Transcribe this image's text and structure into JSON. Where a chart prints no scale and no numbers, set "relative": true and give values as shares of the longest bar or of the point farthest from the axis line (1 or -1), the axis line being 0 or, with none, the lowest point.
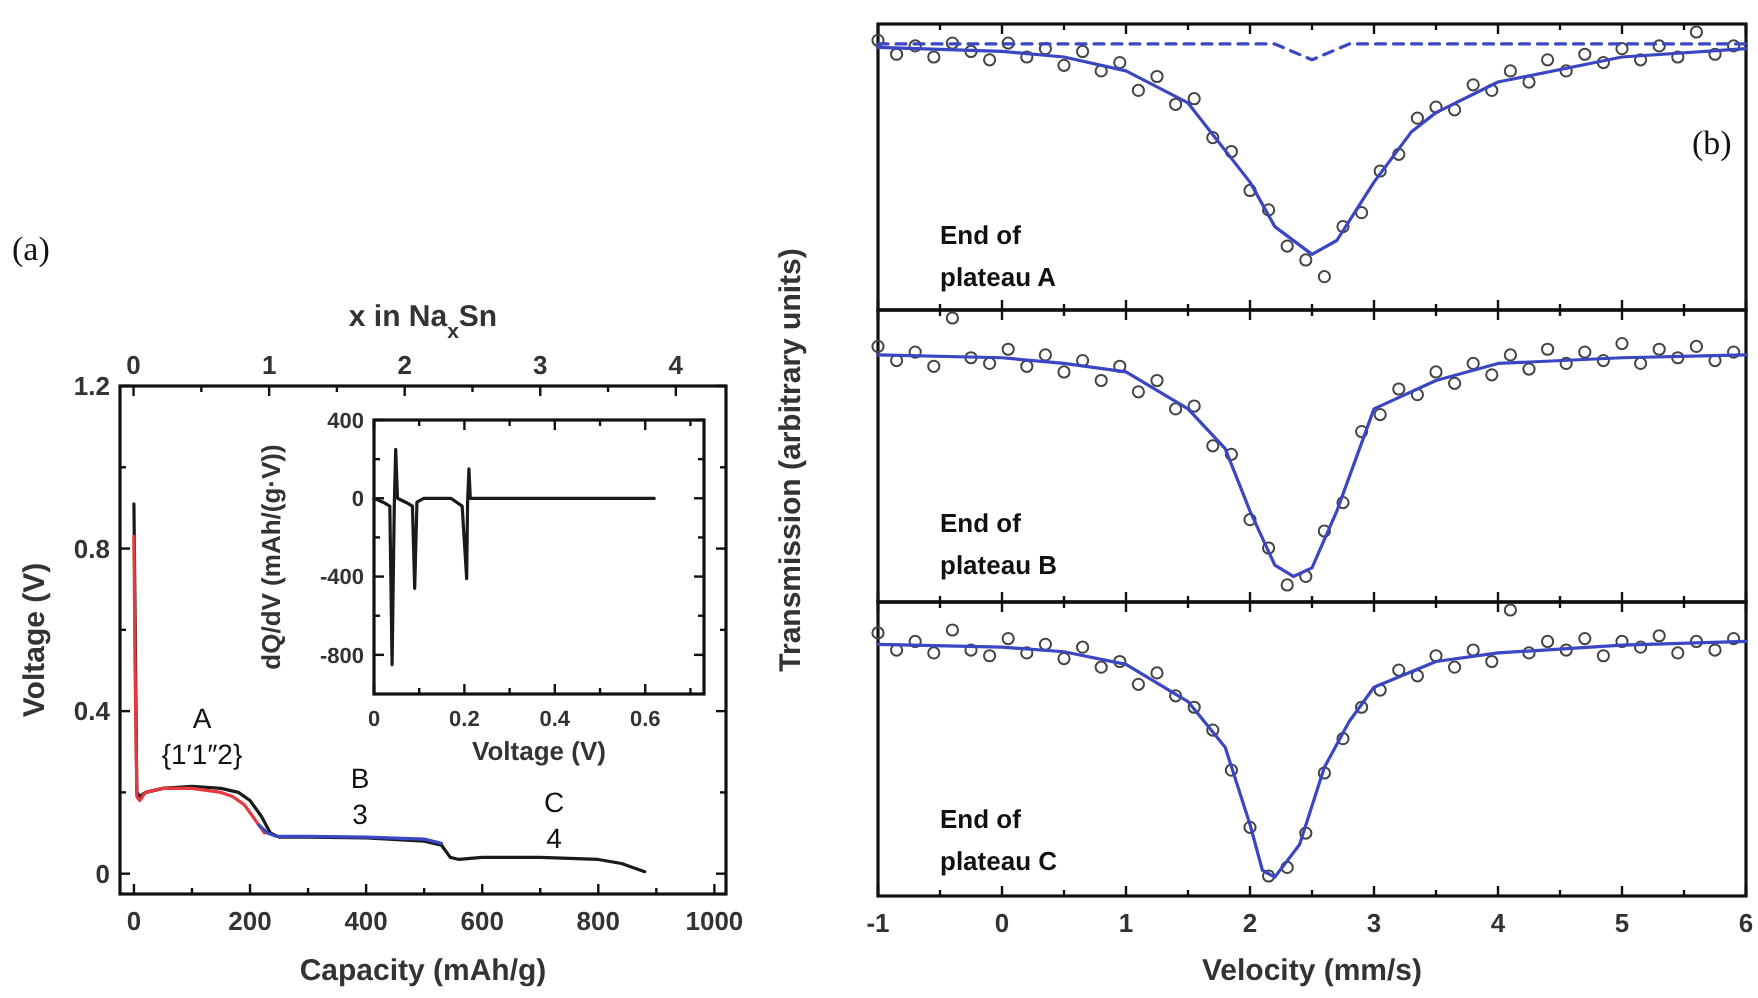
{
  "chart_data": [
    {
      "type": "line",
      "xlabel": "Capacity (mAh/g)",
      "ylabel": "Voltage (V)",
      "x2label": "x in Na$_{x}$Sn",
      "xlim": [
        -24,
        1020
      ],
      "xticks": [
        0,
        {
          "value": 100,
          "label": null
        },
        200,
        {
          "value": 300,
          "label": null
        },
        400,
        {
          "value": 500,
          "label": null
        },
        600,
        {
          "value": 700,
          "label": null
        },
        800,
        {
          "value": 900,
          "label": null
        },
        1000
      ],
      "x2lim": [
        -0.1,
        4.37
      ],
      "x2ticks": [
        0,
        {
          "value": 0.5,
          "label": null
        },
        1,
        {
          "value": 1.5,
          "label": null
        },
        2,
        {
          "value": 2.5,
          "label": null
        },
        3,
        {
          "value": 3.5,
          "label": null
        },
        4
      ],
      "ylim": [
        -0.05,
        1.2
      ],
      "yticks": [
        0,
        {
          "value": 0.2,
          "label": null
        },
        0.4,
        {
          "value": 0.6,
          "label": null
        },
        0.8,
        {
          "value": 1.0,
          "label": null
        },
        1.2
      ],
      "series": [
        {
          "color": "#1a1a1a",
          "x": [
            0,
            5,
            10,
            20,
            50,
            100,
            150,
            180,
            200,
            220,
            235,
            250,
            300,
            400,
            500,
            530,
            545,
            560,
            600,
            700,
            800,
            840,
            880
          ],
          "values": [
            0.91,
            0.2,
            0.19,
            0.2,
            0.21,
            0.215,
            0.21,
            0.2,
            0.18,
            0.14,
            0.1,
            0.09,
            0.09,
            0.088,
            0.08,
            0.07,
            0.04,
            0.035,
            0.04,
            0.04,
            0.035,
            0.025,
            0.005
          ]
        },
        {
          "color": "#e8383d",
          "x": [
            0,
            2,
            5,
            10,
            20,
            50,
            100,
            150,
            170,
            190,
            210,
            225
          ],
          "values": [
            0.83,
            0.5,
            0.19,
            0.18,
            0.2,
            0.21,
            0.21,
            0.2,
            0.19,
            0.17,
            0.13,
            0.1
          ]
        },
        {
          "color": "#3b47c4",
          "x": [
            215,
            230,
            245,
            300,
            400,
            500,
            530
          ],
          "values": [
            0.12,
            0.1,
            0.092,
            0.092,
            0.09,
            0.085,
            0.075
          ]
        }
      ],
      "annotations": [
        "(a)",
        "A",
        "{1′1″2}",
        "B",
        "3",
        "C",
        "4"
      ]
    },
    {
      "type": "line",
      "xlabel": "Voltage (V)",
      "ylabel": "dQ/dV (mAh/(g·V))",
      "xlim": [
        0,
        0.73
      ],
      "xticks": [
        0,
        {
          "value": 0.1,
          "label": null
        },
        0.2,
        {
          "value": 0.3,
          "label": null
        },
        0.4,
        {
          "value": 0.5,
          "label": null
        },
        0.6,
        {
          "value": 0.7,
          "label": null
        }
      ],
      "ylim": [
        -1000,
        400
      ],
      "yticks": [
        -800,
        {
          "value": -600,
          "label": null
        },
        -400,
        {
          "value": -200,
          "label": null
        },
        0,
        {
          "value": 200,
          "label": null
        },
        400
      ],
      "series": [
        {
          "color": "#1a1a1a",
          "x": [
            0,
            0.02,
            0.035,
            0.04,
            0.045,
            0.048,
            0.052,
            0.07,
            0.085,
            0.09,
            0.095,
            0.11,
            0.17,
            0.195,
            0.205,
            0.207,
            0.21,
            0.213,
            0.62
          ],
          "values": [
            0,
            -20,
            -40,
            -850,
            -20,
            250,
            0,
            -20,
            -40,
            -460,
            -20,
            0,
            0,
            -40,
            -410,
            -20,
            150,
            0,
            0
          ]
        }
      ]
    },
    {
      "type": "line",
      "relative": true,
      "tick_labels": false,
      "xlim": [
        -1,
        6
      ],
      "xticks": [
        -1,
        {
          "value": -0.5,
          "label": null
        },
        0,
        {
          "value": 0.5,
          "label": null
        },
        1,
        {
          "value": 1.5,
          "label": null
        },
        2,
        {
          "value": 2.5,
          "label": null
        },
        3,
        {
          "value": 3.5,
          "label": null
        },
        4,
        {
          "value": 4.5,
          "label": null
        },
        5,
        {
          "value": 5.5,
          "label": null
        },
        6
      ],
      "series": [
        {
          "type": "scatter",
          "marker": "circle",
          "color": "#444444",
          "x": [
            -1,
            -0.85,
            -0.7,
            -0.55,
            -0.4,
            -0.25,
            -0.1,
            0.05,
            0.2,
            0.35,
            0.5,
            0.65,
            0.8,
            0.95,
            1.1,
            1.25,
            1.4,
            1.55,
            1.7,
            1.85,
            2.0,
            2.15,
            2.3,
            2.45,
            2.6,
            2.75,
            2.9,
            3.05,
            3.2,
            3.35,
            3.5,
            3.65,
            3.8,
            3.95,
            4.1,
            4.25,
            4.4,
            4.55,
            4.7,
            4.85,
            5.0,
            5.15,
            5.3,
            5.45,
            5.6,
            5.75,
            5.9
          ],
          "values": [
            0.97,
            0.92,
            0.95,
            0.91,
            0.96,
            0.93,
            0.9,
            0.96,
            0.91,
            0.94,
            0.88,
            0.93,
            0.86,
            0.89,
            0.79,
            0.84,
            0.74,
            0.76,
            0.62,
            0.57,
            0.43,
            0.36,
            0.23,
            0.18,
            0.12,
            0.3,
            0.35,
            0.5,
            0.56,
            0.69,
            0.73,
            0.72,
            0.81,
            0.79,
            0.86,
            0.82,
            0.9,
            0.86,
            0.92,
            0.89,
            0.94,
            0.9,
            0.95,
            0.91,
            1,
            0.92,
            0.95
          ]
        },
        {
          "type": "line",
          "color": "#3a46c2",
          "x": [
            -1,
            0,
            0.5,
            1,
            1.5,
            2,
            2.2,
            2.5,
            2.7,
            3,
            3.3,
            3.5,
            4,
            5,
            6
          ],
          "values": [
            0.945,
            0.93,
            0.91,
            0.86,
            0.745,
            0.46,
            0.3,
            0.2,
            0.25,
            0.46,
            0.64,
            0.71,
            0.82,
            0.91,
            0.94
          ]
        },
        {
          "type": "line",
          "line_style": "dashed",
          "color": "#3a46c2",
          "x": [
            -1,
            2.2,
            2.5,
            2.8,
            6
          ],
          "values": [
            0.957,
            0.957,
            0.9,
            0.957,
            0.957
          ]
        }
      ],
      "annotations": [
        "(b)",
        "End of plateau A"
      ]
    },
    {
      "type": "line",
      "relative": true,
      "tick_labels": false,
      "ylabel": "Transmission (arbitrary units)",
      "xlim": [
        -1,
        6
      ],
      "xticks": [
        -1,
        {
          "value": -0.5,
          "label": null
        },
        0,
        {
          "value": 0.5,
          "label": null
        },
        1,
        {
          "value": 1.5,
          "label": null
        },
        2,
        {
          "value": 2.5,
          "label": null
        },
        3,
        {
          "value": 3.5,
          "label": null
        },
        4,
        {
          "value": 4.5,
          "label": null
        },
        5,
        {
          "value": 5.5,
          "label": null
        },
        6
      ],
      "series": [
        {
          "type": "scatter",
          "marker": "circle",
          "color": "#444444",
          "x": [
            -1,
            -0.85,
            -0.7,
            -0.55,
            -0.4,
            -0.25,
            -0.1,
            0.05,
            0.2,
            0.35,
            0.5,
            0.65,
            0.8,
            0.95,
            1.1,
            1.25,
            1.4,
            1.55,
            1.7,
            1.85,
            2.0,
            2.15,
            2.3,
            2.45,
            2.6,
            2.75,
            2.9,
            3.05,
            3.2,
            3.35,
            3.5,
            3.65,
            3.8,
            3.95,
            4.1,
            4.25,
            4.4,
            4.55,
            4.7,
            4.85,
            5.0,
            5.15,
            5.3,
            5.45,
            5.6,
            5.75,
            5.9
          ],
          "values": [
            0.9,
            0.85,
            0.88,
            0.83,
            1,
            0.86,
            0.84,
            0.89,
            0.83,
            0.87,
            0.81,
            0.85,
            0.78,
            0.83,
            0.74,
            0.78,
            0.68,
            0.69,
            0.55,
            0.52,
            0.29,
            0.19,
            0.06,
            0.09,
            0.25,
            0.35,
            0.6,
            0.66,
            0.75,
            0.73,
            0.81,
            0.77,
            0.84,
            0.8,
            0.87,
            0.82,
            0.89,
            0.84,
            0.88,
            0.85,
            0.91,
            0.84,
            0.89,
            0.86,
            0.9,
            0.85,
            0.88
          ]
        },
        {
          "type": "line",
          "color": "#3a46c2",
          "x": [
            -1,
            0,
            0.5,
            1,
            1.5,
            1.8,
            2,
            2.2,
            2.35,
            2.5,
            2.7,
            3,
            3.5,
            4,
            5,
            6
          ],
          "values": [
            0.87,
            0.86,
            0.84,
            0.81,
            0.68,
            0.54,
            0.32,
            0.13,
            0.09,
            0.12,
            0.32,
            0.68,
            0.78,
            0.84,
            0.86,
            0.87
          ]
        }
      ],
      "annotations": [
        "End of plateau B"
      ]
    },
    {
      "type": "line",
      "relative": true,
      "tick_labels": "x",
      "xlabel": "Velocity (mm/s)",
      "xlim": [
        -1,
        6
      ],
      "xticks": [
        -1,
        {
          "value": -0.5,
          "label": null
        },
        0,
        {
          "value": 0.5,
          "label": null
        },
        1,
        {
          "value": 1.5,
          "label": null
        },
        2,
        {
          "value": 2.5,
          "label": null
        },
        3,
        {
          "value": 3.5,
          "label": null
        },
        4,
        {
          "value": 4.5,
          "label": null
        },
        5,
        {
          "value": 5.5,
          "label": null
        },
        6
      ],
      "series": [
        {
          "type": "scatter",
          "marker": "circle",
          "color": "#444444",
          "x": [
            -1,
            -0.85,
            -0.7,
            -0.55,
            -0.4,
            -0.25,
            -0.1,
            0.05,
            0.2,
            0.35,
            0.5,
            0.65,
            0.8,
            0.95,
            1.1,
            1.25,
            1.4,
            1.55,
            1.7,
            1.85,
            2.0,
            2.15,
            2.3,
            2.45,
            2.6,
            2.75,
            2.9,
            3.05,
            3.2,
            3.35,
            3.5,
            3.65,
            3.8,
            3.95,
            4.1,
            4.25,
            4.4,
            4.55,
            4.7,
            4.85,
            5.0,
            5.15,
            5.3,
            5.45,
            5.6,
            5.75,
            5.9
          ],
          "values": [
            0.92,
            0.86,
            0.89,
            0.85,
            0.93,
            0.86,
            0.84,
            0.9,
            0.85,
            0.88,
            0.83,
            0.87,
            0.8,
            0.82,
            0.74,
            0.78,
            0.7,
            0.66,
            0.58,
            0.44,
            0.24,
            0.07,
            0.1,
            0.22,
            0.43,
            0.55,
            0.66,
            0.72,
            0.79,
            0.77,
            0.84,
            0.8,
            0.86,
            0.82,
            1,
            0.85,
            0.89,
            0.86,
            0.9,
            0.84,
            0.89,
            0.87,
            0.91,
            0.85,
            0.89,
            0.86,
            0.9
          ]
        },
        {
          "type": "line",
          "color": "#3a46c2",
          "x": [
            -1,
            0,
            0.5,
            1,
            1.5,
            1.8,
            2,
            2.1,
            2.2,
            2.4,
            2.6,
            2.8,
            3,
            3.5,
            4,
            5,
            6
          ],
          "values": [
            0.88,
            0.87,
            0.854,
            0.81,
            0.68,
            0.52,
            0.25,
            0.09,
            0.066,
            0.18,
            0.45,
            0.61,
            0.73,
            0.82,
            0.85,
            0.877,
            0.89
          ]
        }
      ],
      "annotations": [
        "End of plateau C"
      ]
    }
  ]
}
